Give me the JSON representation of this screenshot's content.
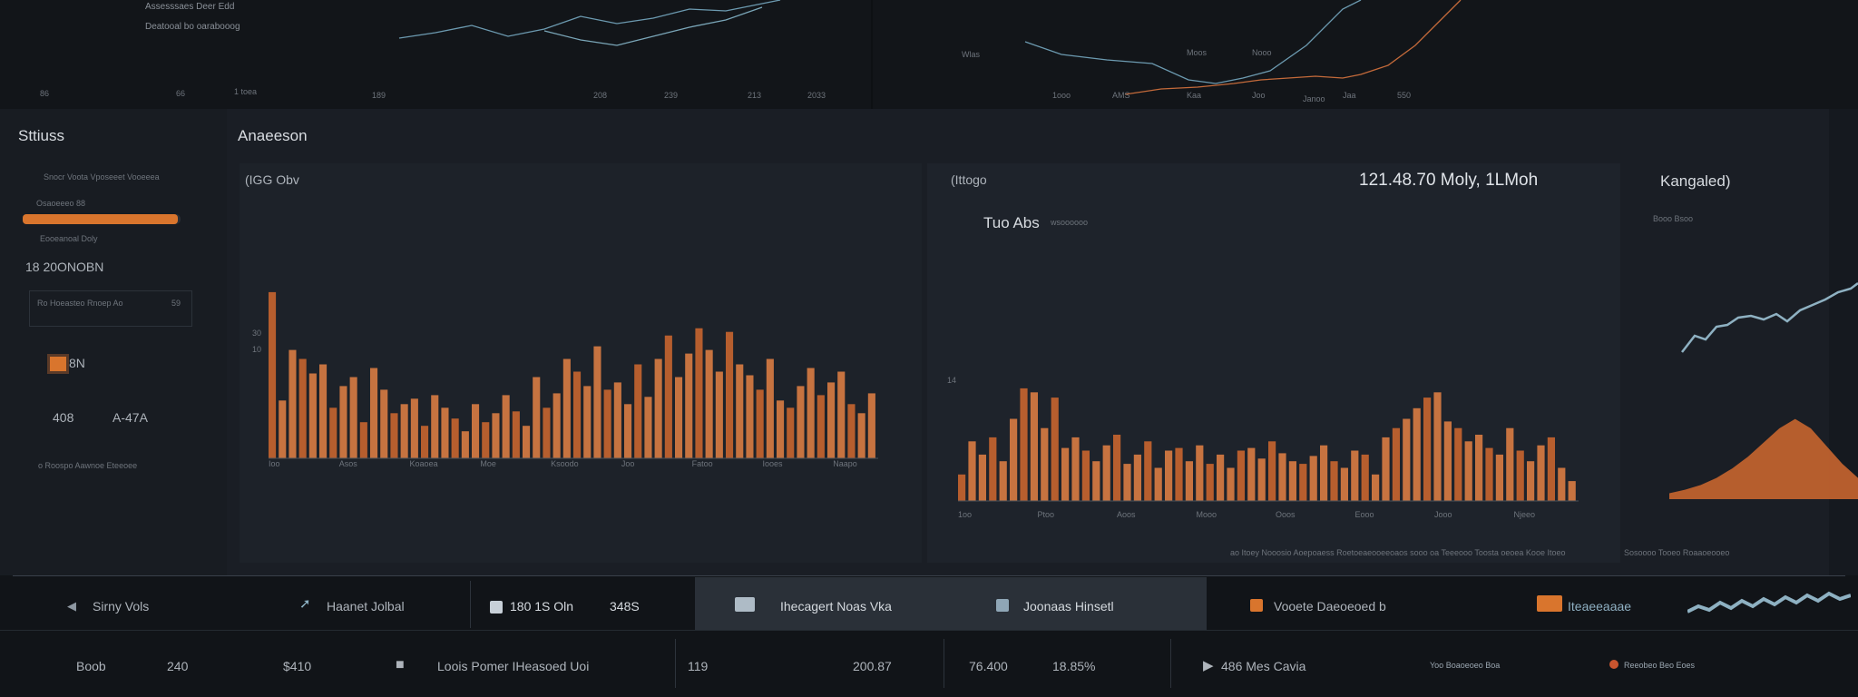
{
  "top": {
    "legend_a": "Assesssaes Deer Edd",
    "legend_b": "Deatooal bo oarabooog",
    "ticks_left": [
      "86",
      "66",
      "1 toea",
      "189",
      "208",
      "239",
      "213",
      "2033"
    ],
    "legend_c": "Moos",
    "legend_d": "Nooo",
    "axis_label": "Wlas",
    "ticks_right": [
      "1ooo",
      "AMS",
      "Kaa",
      "Joo",
      "Janoo",
      "Jaa",
      "550"
    ]
  },
  "sidebar": {
    "title": "Sttiuss",
    "item1": "Snocr Voota Vposeeet Vooeeea",
    "progress_label": "Osaoeeeo 88",
    "progress_fraction": 0.98,
    "item2": "Eooeanoal Doly",
    "metric": "18 20ONOBN",
    "subrow": "Ro Hoeasteo Rnoep Ao",
    "subrow_value": "59",
    "badge_label": "8N",
    "value_a": "408",
    "value_b": "A-47A",
    "footer": "o Roospo Aawnoe Eteeoee"
  },
  "center": {
    "title": "Anaeeson",
    "chart_label": "(IGG Obv",
    "ytick_a": "30",
    "ytick_b": "10",
    "xticks": [
      "Ioo",
      "Asos",
      "Koaoea",
      "Moe",
      "Ksoodo",
      "Joo",
      "Fatoo",
      "Iooes",
      "Naapo"
    ]
  },
  "right": {
    "chart_label": "(Ittogo",
    "headline": "121.48.70 Moly, 1LMoh",
    "subtitle": "Tuo Abs",
    "subtitle_small": "wsoooooo",
    "ytick": "14",
    "xticks": [
      "1oo",
      "Ptoo",
      "Aoos",
      "Mooo",
      "Ooos",
      "Eooo",
      "Jooo",
      "Njeeo"
    ],
    "footer": "ao Itoey Nooosio Aoepoaess Roetoeaeooeeoaos sooo oa Teeeooo Toosta oeoea Kooe Itoeo"
  },
  "far_right": {
    "title": "Kangaled)",
    "label": "Booo Bsoo",
    "footer": "Sosoooo Tooeo Roaaoeooeo"
  },
  "tabs": [
    {
      "label": "Sirny Vols"
    },
    {
      "label": "Haanet Jolbal"
    },
    {
      "label": "180 1S Oln",
      "value": "348S"
    },
    {
      "label": "Ihecagert Noas Vka"
    },
    {
      "label": "Joonaas Hinsetl"
    },
    {
      "label": "Vooete Daeoeoed b"
    },
    {
      "label": "Iteaeeaaae"
    }
  ],
  "bottom_row": {
    "c1": "Boob",
    "c2": "240",
    "c3": "$410",
    "c4": "Loois Pomer IHeasoed Uoi",
    "c5": "119",
    "c6": "200.87",
    "c7": "76.400",
    "c8": "18.85%",
    "c9": "486 Mes Cavia",
    "c10": "Yoo Boaoeoeo Boa",
    "c11": "Reeobeo Beo Eoes"
  },
  "chart_data": [
    {
      "type": "bar",
      "title": "(IGG Obv",
      "series": [
        {
          "values": [
            92,
            32,
            60,
            55,
            47,
            52,
            28,
            40,
            45,
            20,
            50,
            38,
            25,
            30,
            33,
            18,
            35,
            28,
            22,
            15,
            30,
            20,
            25,
            35,
            26,
            18,
            45,
            28,
            36,
            55,
            48,
            40,
            62,
            38,
            42,
            30,
            52,
            34,
            55,
            68,
            45,
            58,
            72,
            60,
            48,
            70,
            52,
            46,
            38,
            55,
            32,
            28,
            40,
            50,
            35,
            42,
            48,
            30,
            25,
            36
          ]
        }
      ]
    },
    {
      "type": "bar",
      "title": "(Ittogo",
      "series": [
        {
          "values": [
            20,
            45,
            35,
            48,
            30,
            62,
            85,
            82,
            55,
            78,
            40,
            48,
            38,
            30,
            42,
            50,
            28,
            35,
            45,
            25,
            38,
            40,
            30,
            42,
            28,
            35,
            25,
            38,
            40,
            32,
            45,
            36,
            30,
            28,
            34,
            42,
            30,
            25,
            38,
            35,
            20,
            48,
            55,
            62,
            70,
            78,
            82,
            60,
            55,
            45,
            50,
            40,
            35,
            55,
            38,
            30,
            42,
            48,
            25,
            15
          ]
        }
      ]
    },
    {
      "type": "area",
      "title": "Kangaled)",
      "series": [
        {
          "values": [
            5,
            8,
            12,
            18,
            26,
            36,
            48,
            60,
            68,
            60,
            45,
            30,
            18
          ]
        }
      ]
    }
  ]
}
